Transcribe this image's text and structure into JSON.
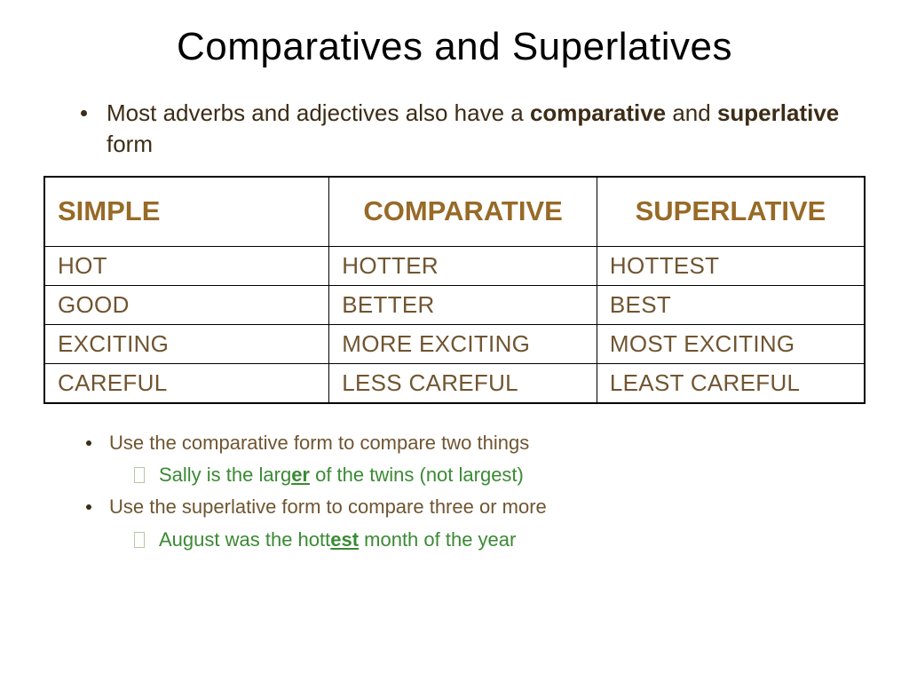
{
  "title": "Comparatives and Superlatives",
  "intro": {
    "line1": "Most adverbs and adjectives also have a ",
    "bold1": "comparative",
    "mid": " and ",
    "bold2": "superlative",
    "line2": " form"
  },
  "table": {
    "headers": [
      "SIMPLE",
      "COMPARATIVE",
      "SUPERLATIVE"
    ],
    "rows": [
      [
        "HOT",
        "HOTTER",
        "HOTTEST"
      ],
      [
        "GOOD",
        "BETTER",
        "BEST"
      ],
      [
        "EXCITING",
        "MORE EXCITING",
        "MOST EXCITING"
      ],
      [
        "CAREFUL",
        "LESS CAREFUL",
        "LEAST CAREFUL"
      ]
    ]
  },
  "notes": {
    "n1": "Use the comparative form to compare two things",
    "ex1_pre": "Sally is the larg",
    "ex1_u": "er",
    "ex1_post": " of the twins (not largest)",
    "n2": "Use the superlative form to compare three or more",
    "ex2_pre": "August was the hott",
    "ex2_u": "est",
    "ex2_post": " month of the year"
  },
  "styling": {
    "title_color": "#000000",
    "body_text_color": "#3d2c16",
    "table_header_color": "#976a27",
    "table_cell_color": "#705531",
    "example_color": "#3a8a34",
    "background": "#ffffff",
    "title_fontsize": 44,
    "intro_fontsize": 26,
    "header_fontsize": 31,
    "cell_fontsize": 26,
    "notes_fontsize": 22
  }
}
